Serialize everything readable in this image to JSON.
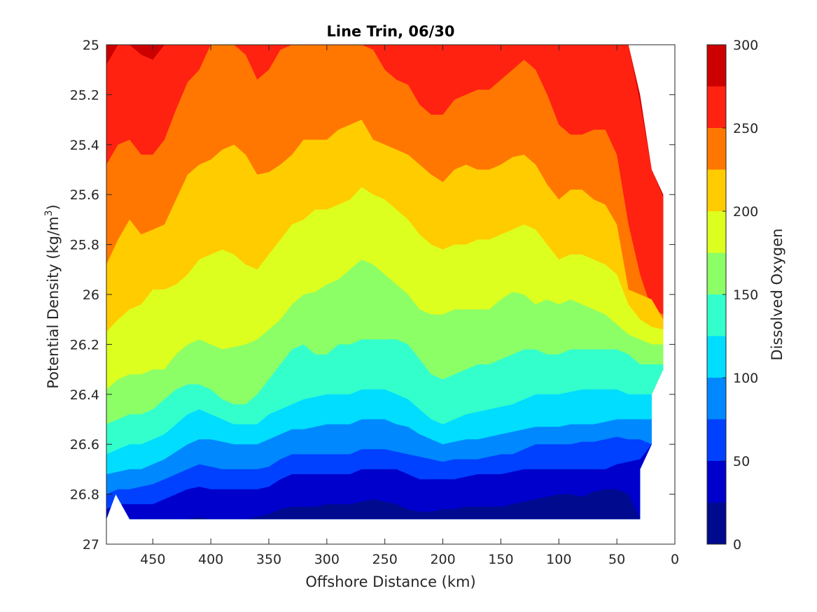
{
  "chart_data": {
    "type": "contourf",
    "title": "Line Trin, 06/30",
    "xlabel": "Offshore Distance (km)",
    "ylabel": "Potential Density (kg/m³)",
    "ylabel_parts": {
      "main": "Potential Density (kg/m",
      "sup": "3",
      "end": ")"
    },
    "colorbar_label": "Dissolved Oxygen",
    "xlim": [
      490,
      0
    ],
    "x_reversed": true,
    "ylim": [
      25,
      27
    ],
    "y_reversed": true,
    "x_ticks": [
      450,
      400,
      350,
      300,
      250,
      200,
      150,
      100,
      50,
      0
    ],
    "y_ticks": [
      25,
      25.2,
      25.4,
      25.6,
      25.8,
      26,
      26.2,
      26.4,
      26.6,
      26.8,
      27
    ],
    "y_tick_labels": [
      "25",
      "25.2",
      "25.4",
      "25.6",
      "25.8",
      "26",
      "26.2",
      "26.4",
      "26.6",
      "26.8",
      "27"
    ],
    "colorbar_ticks": [
      0,
      50,
      100,
      150,
      200,
      250,
      300
    ],
    "levels": [
      0,
      25,
      50,
      75,
      100,
      125,
      150,
      175,
      200,
      225,
      250,
      275,
      300
    ],
    "level_colors": [
      "#000a8f",
      "#0000cc",
      "#0040ff",
      "#0088ff",
      "#00ddff",
      "#33ffcc",
      "#8cff66",
      "#ddff1f",
      "#ffcc00",
      "#ff7700",
      "#ff2211",
      "#cc0000"
    ],
    "colormap": "jet",
    "data_extent": {
      "x_range": [
        490,
        10
      ],
      "bottom_density_at_x": [
        [
          490,
          26.9
        ],
        [
          482,
          26.8
        ],
        [
          470,
          26.9
        ],
        [
          30,
          26.9
        ],
        [
          30,
          26.7
        ],
        [
          20,
          26.6
        ],
        [
          20,
          26.4
        ],
        [
          10,
          26.3
        ]
      ],
      "top_density_at_x": [
        [
          490,
          25.0
        ],
        [
          40,
          25.0
        ],
        [
          30,
          25.2
        ],
        [
          20,
          25.5
        ],
        [
          10,
          25.6
        ]
      ]
    },
    "boundaries": {
      "x": [
        490,
        480,
        470,
        460,
        450,
        440,
        430,
        420,
        410,
        400,
        390,
        380,
        370,
        360,
        350,
        340,
        330,
        320,
        310,
        300,
        290,
        280,
        270,
        260,
        250,
        240,
        230,
        220,
        210,
        200,
        190,
        180,
        170,
        160,
        150,
        140,
        130,
        120,
        110,
        100,
        90,
        80,
        70,
        60,
        50,
        40,
        30,
        20,
        10
      ],
      "levels_desc": [
        275,
        250,
        225,
        200,
        175,
        150,
        125,
        100,
        75,
        50,
        25
      ],
      "densities": [
        [
          25.08,
          25.0,
          25.0,
          25.04,
          25.06,
          25.0,
          25.0,
          25.0,
          25.0,
          25.0,
          25.0,
          25.0,
          25.0,
          25.0,
          25.0,
          25.0,
          25.0,
          25.0,
          25.0,
          25.0,
          25.0,
          25.0,
          25.0,
          25.0,
          25.0,
          25.0,
          25.0,
          25.0,
          25.0,
          25.0,
          25.0,
          25.0,
          25.0,
          25.0,
          25.0,
          25.0,
          25.0,
          25.0,
          25.0,
          25.0,
          25.0,
          25.0,
          25.0,
          25.0,
          25.0,
          25.0,
          25.23,
          25.5,
          25.61
        ],
        [
          25.48,
          25.4,
          25.38,
          25.44,
          25.44,
          25.38,
          25.26,
          25.15,
          25.1,
          25.0,
          25.0,
          25.0,
          25.04,
          25.14,
          25.1,
          25.02,
          25.0,
          25.0,
          25.0,
          25.0,
          25.0,
          25.0,
          25.0,
          25.02,
          25.1,
          25.14,
          25.16,
          25.24,
          25.28,
          25.28,
          25.22,
          25.2,
          25.18,
          25.18,
          25.14,
          25.1,
          25.06,
          25.1,
          25.2,
          25.32,
          25.36,
          25.36,
          25.34,
          25.34,
          25.44,
          25.72,
          25.92,
          26.06,
          26.08
        ],
        [
          25.88,
          25.78,
          25.7,
          25.76,
          25.74,
          25.72,
          25.62,
          25.52,
          25.48,
          25.46,
          25.42,
          25.4,
          25.44,
          25.52,
          25.51,
          25.48,
          25.44,
          25.38,
          25.38,
          25.38,
          25.34,
          25.32,
          25.3,
          25.38,
          25.4,
          25.42,
          25.44,
          25.48,
          25.52,
          25.55,
          25.5,
          25.48,
          25.5,
          25.5,
          25.48,
          25.45,
          25.44,
          25.48,
          25.56,
          25.62,
          25.58,
          25.58,
          25.62,
          25.64,
          25.72,
          25.98,
          26.0,
          26.02,
          26.1
        ],
        [
          26.15,
          26.1,
          26.06,
          26.04,
          25.98,
          25.98,
          25.96,
          25.92,
          25.86,
          25.84,
          25.82,
          25.84,
          25.88,
          25.9,
          25.84,
          25.78,
          25.72,
          25.7,
          25.66,
          25.66,
          25.64,
          25.62,
          25.57,
          25.6,
          25.62,
          25.66,
          25.7,
          25.76,
          25.8,
          25.82,
          25.8,
          25.8,
          25.78,
          25.78,
          25.76,
          25.74,
          25.72,
          25.74,
          25.8,
          25.86,
          25.84,
          25.84,
          25.86,
          25.88,
          25.92,
          26.04,
          26.1,
          26.13,
          26.14
        ],
        [
          26.38,
          26.34,
          26.32,
          26.32,
          26.3,
          26.3,
          26.24,
          26.2,
          26.18,
          26.2,
          26.22,
          26.21,
          26.2,
          26.18,
          26.14,
          26.1,
          26.04,
          26.0,
          25.99,
          25.96,
          25.94,
          25.9,
          25.86,
          25.88,
          25.92,
          25.96,
          26.0,
          26.06,
          26.08,
          26.08,
          26.06,
          26.06,
          26.06,
          26.06,
          26.02,
          25.99,
          26.0,
          26.04,
          26.02,
          26.04,
          26.02,
          26.04,
          26.06,
          26.08,
          26.12,
          26.16,
          26.18,
          26.2,
          26.2
        ],
        [
          26.52,
          26.5,
          26.48,
          26.48,
          26.46,
          26.42,
          26.38,
          26.36,
          26.36,
          26.38,
          26.42,
          26.44,
          26.44,
          26.4,
          26.34,
          26.28,
          26.22,
          26.2,
          26.24,
          26.24,
          26.2,
          26.2,
          26.18,
          26.18,
          26.18,
          26.18,
          26.2,
          26.26,
          26.32,
          26.34,
          26.32,
          26.3,
          26.28,
          26.28,
          26.26,
          26.24,
          26.22,
          26.22,
          26.24,
          26.24,
          26.22,
          26.22,
          26.22,
          26.22,
          26.22,
          26.24,
          26.28,
          26.28,
          26.28
        ],
        [
          26.64,
          26.62,
          26.6,
          26.6,
          26.58,
          26.56,
          26.52,
          26.48,
          26.46,
          26.48,
          26.5,
          26.52,
          26.52,
          26.52,
          26.48,
          26.46,
          26.44,
          26.42,
          26.41,
          26.4,
          26.4,
          26.4,
          26.38,
          26.38,
          26.38,
          26.4,
          26.42,
          26.46,
          26.5,
          26.52,
          26.5,
          26.48,
          26.47,
          26.46,
          26.45,
          26.44,
          26.42,
          26.4,
          26.4,
          26.4,
          26.39,
          26.38,
          26.38,
          26.38,
          26.38,
          26.4,
          26.4,
          26.4,
          26.3
        ],
        [
          26.72,
          26.71,
          26.7,
          26.7,
          26.68,
          26.66,
          26.63,
          26.6,
          26.58,
          26.58,
          26.59,
          26.6,
          26.6,
          26.6,
          26.58,
          26.56,
          26.54,
          26.54,
          26.53,
          26.52,
          26.52,
          26.52,
          26.5,
          26.5,
          26.5,
          26.52,
          26.53,
          26.56,
          26.58,
          26.6,
          26.59,
          26.58,
          26.58,
          26.57,
          26.56,
          26.55,
          26.54,
          26.53,
          26.53,
          26.53,
          26.52,
          26.52,
          26.52,
          26.51,
          26.5,
          26.5,
          26.5,
          26.5,
          26.3
        ],
        [
          26.8,
          26.78,
          26.78,
          26.77,
          26.76,
          26.74,
          26.72,
          26.7,
          26.68,
          26.69,
          26.7,
          26.7,
          26.7,
          26.7,
          26.69,
          26.66,
          26.64,
          26.64,
          26.64,
          26.64,
          26.64,
          26.64,
          26.62,
          26.62,
          26.62,
          26.63,
          26.64,
          26.65,
          26.66,
          26.67,
          26.66,
          26.66,
          26.66,
          26.65,
          26.64,
          26.64,
          26.62,
          26.6,
          26.6,
          26.6,
          26.6,
          26.59,
          26.59,
          26.58,
          26.57,
          26.58,
          26.58,
          26.6,
          26.3
        ],
        [
          26.86,
          26.84,
          26.84,
          26.84,
          26.84,
          26.82,
          26.8,
          26.78,
          26.77,
          26.78,
          26.78,
          26.78,
          26.78,
          26.78,
          26.77,
          26.74,
          26.72,
          26.72,
          26.72,
          26.72,
          26.72,
          26.72,
          26.7,
          26.7,
          26.7,
          26.7,
          26.72,
          26.74,
          26.74,
          26.74,
          26.74,
          26.73,
          26.72,
          26.72,
          26.72,
          26.71,
          26.7,
          26.7,
          26.7,
          26.7,
          26.7,
          26.7,
          26.7,
          26.7,
          26.68,
          26.67,
          26.66,
          26.6,
          26.3
        ],
        [
          26.9,
          26.9,
          26.9,
          26.9,
          26.9,
          26.9,
          26.9,
          26.9,
          26.89,
          26.9,
          26.9,
          26.9,
          26.9,
          26.89,
          26.88,
          26.86,
          26.85,
          26.85,
          26.85,
          26.84,
          26.84,
          26.84,
          26.83,
          26.82,
          26.83,
          26.84,
          26.86,
          26.87,
          26.87,
          26.86,
          26.86,
          26.85,
          26.85,
          26.85,
          26.85,
          26.84,
          26.83,
          26.82,
          26.81,
          26.8,
          26.8,
          26.81,
          26.79,
          26.78,
          26.78,
          26.8,
          26.9,
          26.6,
          26.3
        ]
      ]
    }
  }
}
